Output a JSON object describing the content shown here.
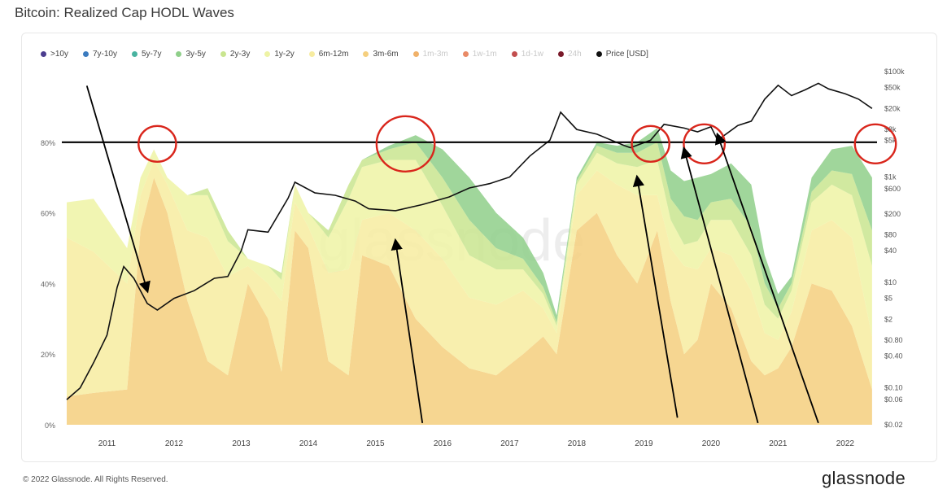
{
  "page_title": "Bitcoin: Realized Cap HODL Waves",
  "footer": "© 2022 Glassnode. All Rights Reserved.",
  "brand": "glassnode",
  "watermark": "glassnode",
  "legend": [
    {
      "label": ">10y",
      "color": "#4b3d8f",
      "faded": false
    },
    {
      "label": "7y-10y",
      "color": "#3b7bbf",
      "faded": false
    },
    {
      "label": "5y-7y",
      "color": "#49b3a0",
      "faded": false
    },
    {
      "label": "3y-5y",
      "color": "#8fcf8a",
      "faded": false
    },
    {
      "label": "2y-3y",
      "color": "#c9e58f",
      "faded": false
    },
    {
      "label": "1y-2y",
      "color": "#eef3a5",
      "faded": false
    },
    {
      "label": "6m-12m",
      "color": "#f7eca0",
      "faded": false
    },
    {
      "label": "3m-6m",
      "color": "#f5cf7e",
      "faded": false
    },
    {
      "label": "1m-3m",
      "color": "#f0b169",
      "faded": true
    },
    {
      "label": "1w-1m",
      "color": "#e98a66",
      "faded": true
    },
    {
      "label": "1d-1w",
      "color": "#c24e4e",
      "faded": true
    },
    {
      "label": "24h",
      "color": "#7a1a2a",
      "faded": true
    },
    {
      "label": "Price [USD]",
      "color": "#111111",
      "faded": false
    }
  ],
  "chart_data": {
    "type": "area",
    "title": "Bitcoin: Realized Cap HODL Waves",
    "x_ticks": [
      "2011",
      "2012",
      "2013",
      "2014",
      "2015",
      "2016",
      "2017",
      "2018",
      "2019",
      "2020",
      "2021",
      "2022"
    ],
    "y_left_ticks": [
      "0%",
      "20%",
      "40%",
      "60%",
      "80%"
    ],
    "y_left_range": [
      0,
      100
    ],
    "y_right_ticks": [
      "$0.02",
      "$0.06",
      "$0.10",
      "$0.40",
      "$0.80",
      "$2",
      "$5",
      "$10",
      "$40",
      "$80",
      "$200",
      "$600",
      "$1k",
      "$5k",
      "$8k",
      "$20k",
      "$50k",
      "$100k"
    ],
    "y_right_scale": "log",
    "y_right_range": [
      0.02,
      100000
    ],
    "reference_line_pct": 80,
    "stacked_series_pct": [
      {
        "name": "3m-6m",
        "x": [
          2010.6,
          2011.0,
          2011.5,
          2011.7,
          2011.9,
          2012.1,
          2012.4,
          2012.7,
          2013.0,
          2013.3,
          2013.6,
          2013.8,
          2014.0,
          2014.2,
          2014.5,
          2014.8,
          2015.0,
          2015.4,
          2015.8,
          2016.2,
          2016.6,
          2017.0,
          2017.4,
          2017.7,
          2017.9,
          2018.2,
          2018.5,
          2018.8,
          2019.1,
          2019.4,
          2019.6,
          2019.8,
          2020.0,
          2020.2,
          2020.5,
          2020.8,
          2021.0,
          2021.2,
          2021.4,
          2021.7,
          2022.0,
          2022.3,
          2022.6
        ],
        "values": [
          8,
          9,
          10,
          55,
          70,
          60,
          35,
          18,
          14,
          40,
          30,
          15,
          55,
          50,
          18,
          14,
          48,
          45,
          30,
          22,
          16,
          14,
          20,
          25,
          20,
          55,
          60,
          48,
          40,
          55,
          35,
          20,
          24,
          40,
          33,
          18,
          14,
          16,
          22,
          40,
          38,
          28,
          10
        ]
      },
      {
        "name": "6m-12m",
        "x": [
          2010.6,
          2011.0,
          2011.5,
          2011.7,
          2011.9,
          2012.1,
          2012.4,
          2012.7,
          2013.0,
          2013.3,
          2013.6,
          2013.8,
          2014.0,
          2014.2,
          2014.5,
          2014.8,
          2015.0,
          2015.4,
          2015.8,
          2016.2,
          2016.6,
          2017.0,
          2017.4,
          2017.7,
          2017.9,
          2018.2,
          2018.5,
          2018.8,
          2019.1,
          2019.4,
          2019.6,
          2019.8,
          2020.0,
          2020.2,
          2020.5,
          2020.8,
          2021.0,
          2021.2,
          2021.4,
          2021.7,
          2022.0,
          2022.3,
          2022.6
        ],
        "values": [
          45,
          40,
          30,
          10,
          5,
          8,
          20,
          35,
          28,
          5,
          10,
          20,
          8,
          6,
          25,
          30,
          10,
          15,
          25,
          25,
          20,
          20,
          18,
          8,
          6,
          10,
          12,
          20,
          25,
          10,
          15,
          25,
          20,
          10,
          15,
          20,
          12,
          8,
          10,
          15,
          20,
          25,
          15
        ]
      },
      {
        "name": "1y-2y",
        "x": [
          2010.6,
          2011.0,
          2011.5,
          2011.7,
          2011.9,
          2012.1,
          2012.4,
          2012.7,
          2013.0,
          2013.3,
          2013.6,
          2013.8,
          2014.0,
          2014.2,
          2014.5,
          2014.8,
          2015.0,
          2015.4,
          2015.8,
          2016.2,
          2016.6,
          2017.0,
          2017.4,
          2017.7,
          2017.9,
          2018.2,
          2018.5,
          2018.8,
          2019.1,
          2019.4,
          2019.6,
          2019.8,
          2020.0,
          2020.2,
          2020.5,
          2020.8,
          2021.0,
          2021.2,
          2021.4,
          2021.7,
          2022.0,
          2022.3,
          2022.6
        ],
        "values": [
          10,
          15,
          10,
          5,
          3,
          2,
          10,
          12,
          10,
          2,
          5,
          6,
          5,
          4,
          10,
          20,
          15,
          15,
          20,
          15,
          12,
          10,
          6,
          4,
          2,
          3,
          5,
          6,
          8,
          10,
          8,
          6,
          8,
          8,
          10,
          10,
          8,
          6,
          6,
          8,
          10,
          12,
          20
        ]
      },
      {
        "name": "2y-3y",
        "x": [
          2010.6,
          2011.0,
          2011.5,
          2011.7,
          2011.9,
          2012.1,
          2012.4,
          2012.7,
          2013.0,
          2013.3,
          2013.6,
          2013.8,
          2014.0,
          2014.2,
          2014.5,
          2014.8,
          2015.0,
          2015.4,
          2015.8,
          2016.2,
          2016.6,
          2017.0,
          2017.4,
          2017.7,
          2017.9,
          2018.2,
          2018.5,
          2018.8,
          2019.1,
          2019.4,
          2019.6,
          2019.8,
          2020.0,
          2020.2,
          2020.5,
          2020.8,
          2021.0,
          2021.2,
          2021.4,
          2021.7,
          2022.0,
          2022.3,
          2022.6
        ],
        "values": [
          0,
          0,
          0,
          0,
          0,
          0,
          0,
          2,
          3,
          0,
          0,
          2,
          0,
          0,
          2,
          4,
          2,
          3,
          5,
          8,
          10,
          6,
          3,
          2,
          1,
          1,
          2,
          3,
          4,
          5,
          6,
          8,
          6,
          5,
          6,
          8,
          6,
          3,
          2,
          3,
          4,
          6,
          10
        ]
      },
      {
        "name": "3y-5y",
        "x": [
          2010.6,
          2011.0,
          2011.5,
          2011.7,
          2011.9,
          2012.1,
          2012.4,
          2012.7,
          2013.0,
          2013.3,
          2013.6,
          2013.8,
          2014.0,
          2014.2,
          2014.5,
          2014.8,
          2015.0,
          2015.4,
          2015.8,
          2016.2,
          2016.6,
          2017.0,
          2017.4,
          2017.7,
          2017.9,
          2018.2,
          2018.5,
          2018.8,
          2019.1,
          2019.4,
          2019.6,
          2019.8,
          2020.0,
          2020.2,
          2020.5,
          2020.8,
          2021.0,
          2021.2,
          2021.4,
          2021.7,
          2022.0,
          2022.3,
          2022.6
        ],
        "values": [
          0,
          0,
          0,
          0,
          0,
          0,
          0,
          0,
          0,
          0,
          0,
          0,
          0,
          0,
          0,
          0,
          0,
          1,
          2,
          8,
          12,
          10,
          6,
          4,
          2,
          1,
          1,
          2,
          3,
          4,
          8,
          10,
          12,
          8,
          10,
          12,
          8,
          4,
          2,
          4,
          6,
          8,
          15
        ]
      }
    ],
    "price_series_usd": {
      "name": "Price [USD]",
      "x": [
        2010.6,
        2010.8,
        2011.0,
        2011.2,
        2011.35,
        2011.45,
        2011.6,
        2011.8,
        2011.95,
        2012.2,
        2012.5,
        2012.8,
        2013.0,
        2013.2,
        2013.3,
        2013.6,
        2013.9,
        2014.0,
        2014.3,
        2014.6,
        2014.9,
        2015.1,
        2015.5,
        2015.9,
        2016.3,
        2016.6,
        2016.9,
        2017.2,
        2017.5,
        2017.8,
        2017.96,
        2018.2,
        2018.5,
        2018.9,
        2019.0,
        2019.3,
        2019.5,
        2019.8,
        2020.0,
        2020.2,
        2020.3,
        2020.6,
        2020.8,
        2021.0,
        2021.2,
        2021.4,
        2021.6,
        2021.8,
        2021.95,
        2022.2,
        2022.4,
        2022.6
      ],
      "values": [
        0.06,
        0.1,
        0.3,
        1,
        8,
        20,
        12,
        4,
        3,
        5,
        7,
        12,
        13,
        40,
        100,
        90,
        400,
        800,
        500,
        450,
        350,
        250,
        230,
        300,
        420,
        620,
        750,
        1000,
        2500,
        5000,
        17000,
        8000,
        6500,
        4000,
        3600,
        5000,
        10000,
        8500,
        7200,
        9000,
        5000,
        9500,
        11500,
        30000,
        55000,
        35000,
        45000,
        60000,
        47000,
        38000,
        30000,
        20000
      ]
    },
    "annotations": "red circles mark the 80% line tops; black arrows point to the bottoms"
  }
}
